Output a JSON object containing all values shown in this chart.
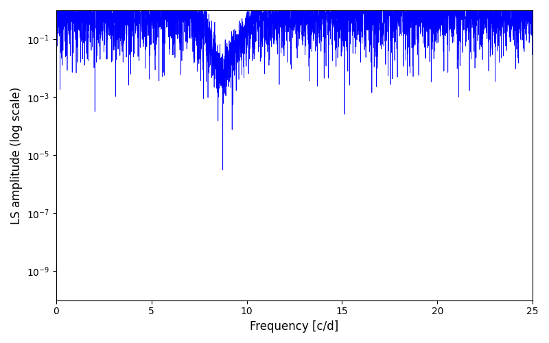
{
  "xlabel": "Frequency [c/d]",
  "ylabel": "LS amplitude (log scale)",
  "line_color": "#0000FF",
  "xlim": [
    0,
    25
  ],
  "ylim": [
    1e-10,
    1.0
  ],
  "freq_max": 25,
  "n_points": 5000,
  "seed": 77,
  "background_color": "#ffffff",
  "figsize": [
    8.0,
    5.0
  ],
  "dpi": 100,
  "linewidth": 0.5
}
